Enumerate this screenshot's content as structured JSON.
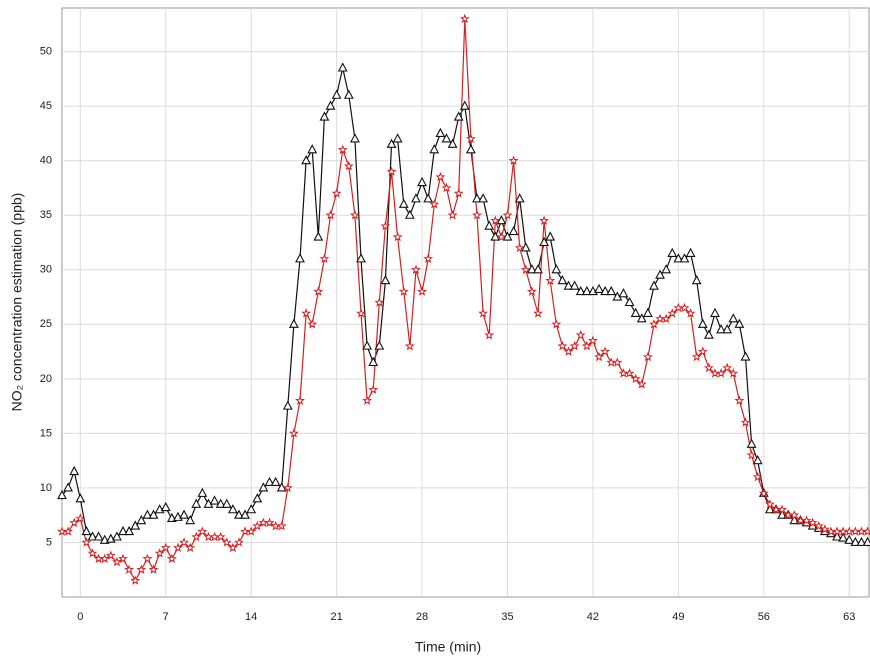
{
  "chart_data": {
    "type": "line",
    "x_label": "Time (min)",
    "y_label": "NO₂ concentration estimation (ppb)",
    "x": [
      -1.5,
      -1,
      -0.5,
      0,
      0.5,
      1,
      1.5,
      2,
      2.5,
      3,
      3.5,
      4,
      4.5,
      5,
      5.5,
      6,
      6.5,
      7,
      7.5,
      8,
      8.5,
      9,
      9.5,
      10,
      10.5,
      11,
      11.5,
      12,
      12.5,
      13,
      13.5,
      14,
      14.5,
      15,
      15.5,
      16,
      16.5,
      17,
      17.5,
      18,
      18.5,
      19,
      19.5,
      20,
      20.5,
      21,
      21.5,
      22,
      22.5,
      23,
      23.5,
      24,
      24.5,
      25,
      25.5,
      26,
      26.5,
      27,
      27.5,
      28,
      28.5,
      29,
      29.5,
      30,
      30.5,
      31,
      31.5,
      32,
      32.5,
      33,
      33.5,
      34,
      34.5,
      35,
      35.5,
      36,
      36.5,
      37,
      37.5,
      38,
      38.5,
      39,
      39.5,
      40,
      40.5,
      41,
      41.5,
      42,
      42.5,
      43,
      43.5,
      44,
      44.5,
      45,
      45.5,
      46,
      46.5,
      47,
      47.5,
      48,
      48.5,
      49,
      49.5,
      50,
      50.5,
      51,
      51.5,
      52,
      52.5,
      53,
      53.5,
      54,
      54.5,
      55,
      55.5,
      56,
      56.5,
      57,
      57.5,
      58,
      58.5,
      59,
      59.5,
      60,
      60.5,
      61,
      61.5,
      62,
      62.5,
      63,
      63.5,
      64,
      64.5
    ],
    "series": [
      {
        "color": "#111111",
        "marker": "triangle",
        "values": [
          9.3,
          10,
          11.5,
          9,
          6,
          5.5,
          5.5,
          5.2,
          5.3,
          5.5,
          6,
          6,
          6.5,
          7,
          7.5,
          7.5,
          8,
          8.2,
          7.2,
          7.3,
          7.5,
          7,
          8.5,
          9.5,
          8.5,
          8.8,
          8.5,
          8.5,
          8,
          7.5,
          7.5,
          8,
          9,
          10,
          10.5,
          10.5,
          10,
          17.5,
          25,
          31,
          40,
          41,
          33,
          44,
          45,
          46,
          48.5,
          46,
          42,
          31,
          23,
          21.5,
          23,
          29,
          41.5,
          42,
          36,
          35,
          36.5,
          38,
          36.5,
          41,
          42.5,
          42,
          41.5,
          44,
          45,
          41,
          36.5,
          36.5,
          34,
          33,
          34.5,
          33,
          33.5,
          36.5,
          32,
          30,
          30,
          32.5,
          33,
          30,
          29,
          28.5,
          28.5,
          28,
          28,
          28,
          28.2,
          28,
          28,
          27.5,
          27.8,
          27,
          26,
          25.5,
          26,
          28.5,
          29.5,
          30,
          31.5,
          31,
          31,
          31.5,
          29,
          25,
          24,
          26,
          24.5,
          24.5,
          25.5,
          25,
          22,
          14,
          12.5,
          9.5,
          8,
          8,
          7.5,
          7.5,
          7,
          7,
          6.8,
          6.5,
          6.3,
          6,
          5.8,
          5.5,
          5.4,
          5.2,
          5,
          5,
          5
        ]
      },
      {
        "color": "#d42020",
        "marker": "star",
        "values": [
          6,
          6,
          6.8,
          7.2,
          5,
          4,
          3.5,
          3.5,
          3.8,
          3.2,
          3.5,
          2.5,
          1.5,
          2.5,
          3.5,
          2.5,
          4,
          4.5,
          3.5,
          4.5,
          5,
          4.5,
          5.5,
          6,
          5.5,
          5.5,
          5.5,
          5,
          4.5,
          5,
          6,
          6,
          6.5,
          6.8,
          6.8,
          6.5,
          6.5,
          10,
          15,
          18,
          26,
          25,
          28,
          31,
          35,
          37,
          41,
          39.5,
          35,
          26,
          18,
          19,
          27,
          34,
          39,
          33,
          28,
          23,
          30,
          28,
          31,
          36,
          38.5,
          37.5,
          35,
          37,
          53,
          42,
          35,
          26,
          24,
          34.5,
          33,
          35,
          40,
          32,
          30,
          28,
          26,
          34.5,
          29,
          25,
          23,
          22.5,
          23,
          24,
          23,
          23.5,
          22,
          22.5,
          21.5,
          21.5,
          20.5,
          20.5,
          20,
          19.5,
          22,
          25,
          25.5,
          25.5,
          26,
          26.5,
          26.5,
          26,
          22,
          22.5,
          21,
          20.5,
          20.5,
          21,
          20.5,
          18,
          16,
          13,
          11,
          9.5,
          8.5,
          8,
          8,
          7.5,
          7.5,
          7,
          7,
          6.8,
          6.5,
          6.2,
          6,
          6,
          6,
          6,
          6,
          6,
          6
        ]
      }
    ],
    "xlim": [
      -1.5,
      64.7
    ],
    "xticks": [
      0,
      7,
      14,
      21,
      28,
      35,
      42,
      49,
      56,
      63
    ],
    "ylim": [
      0,
      54
    ],
    "yticks": [
      5,
      10,
      15,
      20,
      25,
      30,
      35,
      40,
      45,
      50
    ],
    "grid": true
  }
}
